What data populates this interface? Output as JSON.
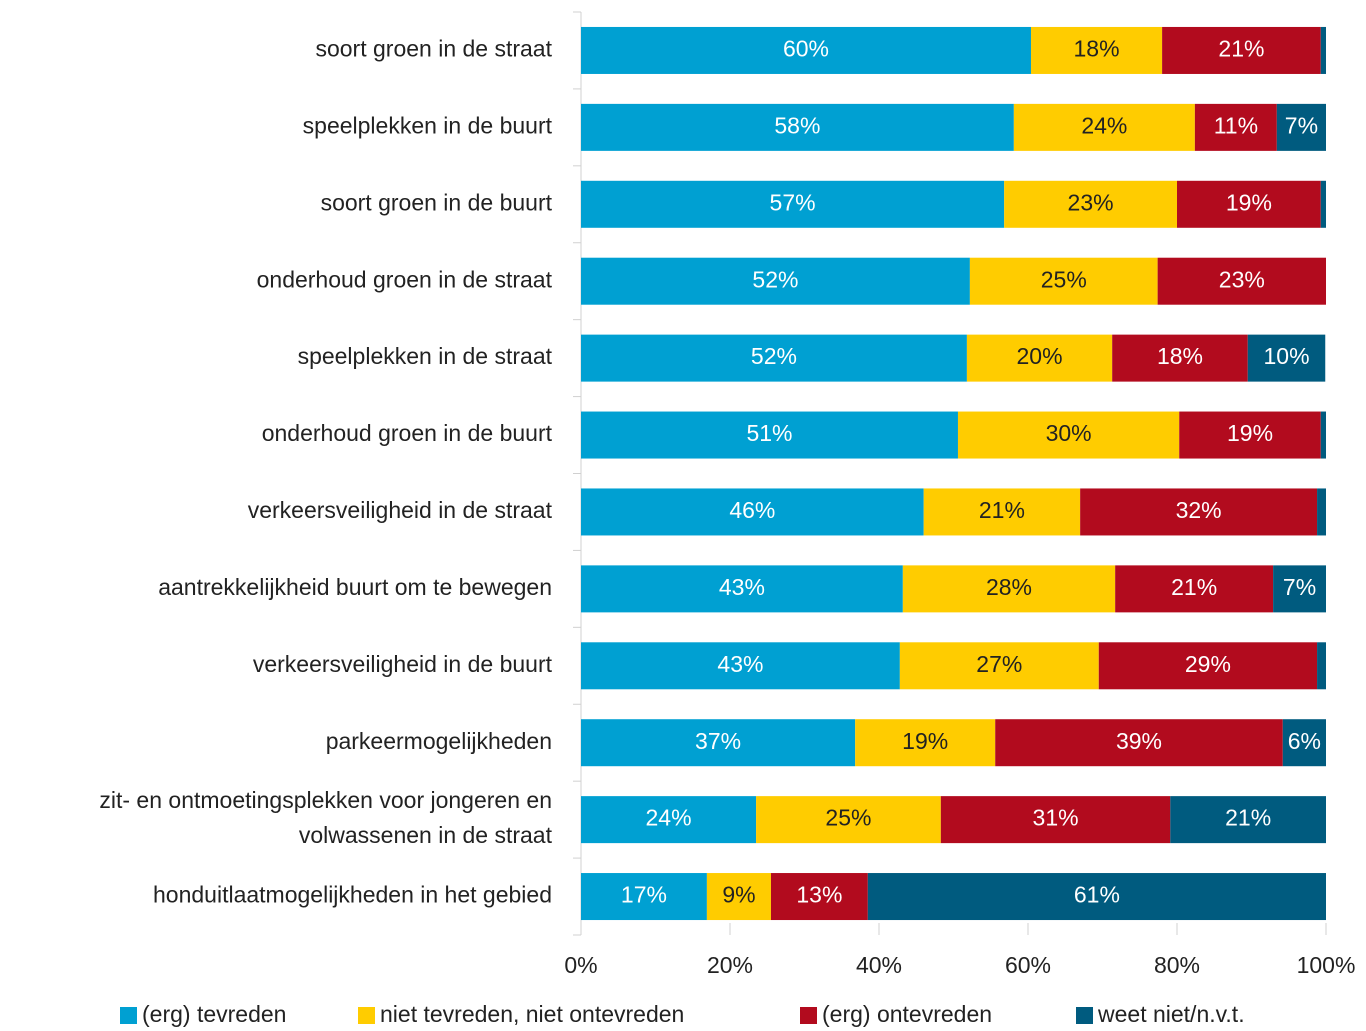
{
  "chart_data": {
    "type": "stacked-barh",
    "categories": [
      "soort groen in de straat",
      "speelplekken in de buurt",
      "soort groen in de buurt",
      "onderhoud groen in de straat",
      "speelplekken in de straat",
      "onderhoud groen in de buurt",
      "verkeersveiligheid in de straat",
      "aantrekkelijkheid buurt om te bewegen",
      "verkeersveiligheid in de buurt",
      "parkeermogelijkheden",
      "zit- en ontmoetingsplekken voor jongeren en volwassenen in de straat",
      "honduitlaatmogelijkheden in het gebied"
    ],
    "series": [
      {
        "name": "(erg) tevreden",
        "color": "#00a0d2",
        "text_color": "#ffffff",
        "values": [
          60.4,
          58.1,
          56.8,
          52.2,
          51.8,
          50.6,
          46.0,
          43.2,
          42.8,
          36.8,
          23.5,
          16.9
        ],
        "value_labels": [
          "60%",
          "58%",
          "57%",
          "52%",
          "52%",
          "51%",
          "46%",
          "43%",
          "43%",
          "37%",
          "24%",
          "17%"
        ]
      },
      {
        "name": "niet tevreden, niet ontevreden",
        "color": "#ffcc00",
        "text_color": "#222222",
        "values": [
          17.6,
          24.3,
          23.2,
          25.2,
          19.5,
          29.7,
          21.0,
          28.5,
          26.7,
          18.8,
          24.8,
          8.6
        ],
        "value_labels": [
          "18%",
          "24%",
          "23%",
          "25%",
          "20%",
          "30%",
          "21%",
          "28%",
          "27%",
          "19%",
          "25%",
          "9%"
        ]
      },
      {
        "name": "(erg) ontevreden",
        "color": "#b20b1e",
        "text_color": "#ffffff",
        "values": [
          21.3,
          11.0,
          19.3,
          22.6,
          18.2,
          19.0,
          31.8,
          21.2,
          29.3,
          38.6,
          30.8,
          13.0
        ],
        "value_labels": [
          "21%",
          "11%",
          "19%",
          "23%",
          "18%",
          "19%",
          "32%",
          "21%",
          "29%",
          "39%",
          "31%",
          "13%"
        ]
      },
      {
        "name": "weet niet/n.v.t.",
        "color": "#005b7f",
        "text_color": "#ffffff",
        "values": [
          0.7,
          6.6,
          0.7,
          0,
          10.4,
          0.7,
          1.2,
          7.1,
          1.2,
          5.8,
          20.9,
          61.5
        ],
        "value_labels": [
          null,
          "7%",
          null,
          null,
          "10%",
          null,
          null,
          "7%",
          null,
          "6%",
          "21%",
          "61%"
        ]
      }
    ],
    "xlim": [
      0,
      100
    ],
    "xticks": [
      {
        "value": 0,
        "label": "0%"
      },
      {
        "value": 20,
        "label": "20%"
      },
      {
        "value": 40,
        "label": "40%"
      },
      {
        "value": 60,
        "label": "60%"
      },
      {
        "value": 80,
        "label": "80%"
      },
      {
        "value": 100,
        "label": "100%"
      }
    ],
    "legend": "bottom"
  }
}
